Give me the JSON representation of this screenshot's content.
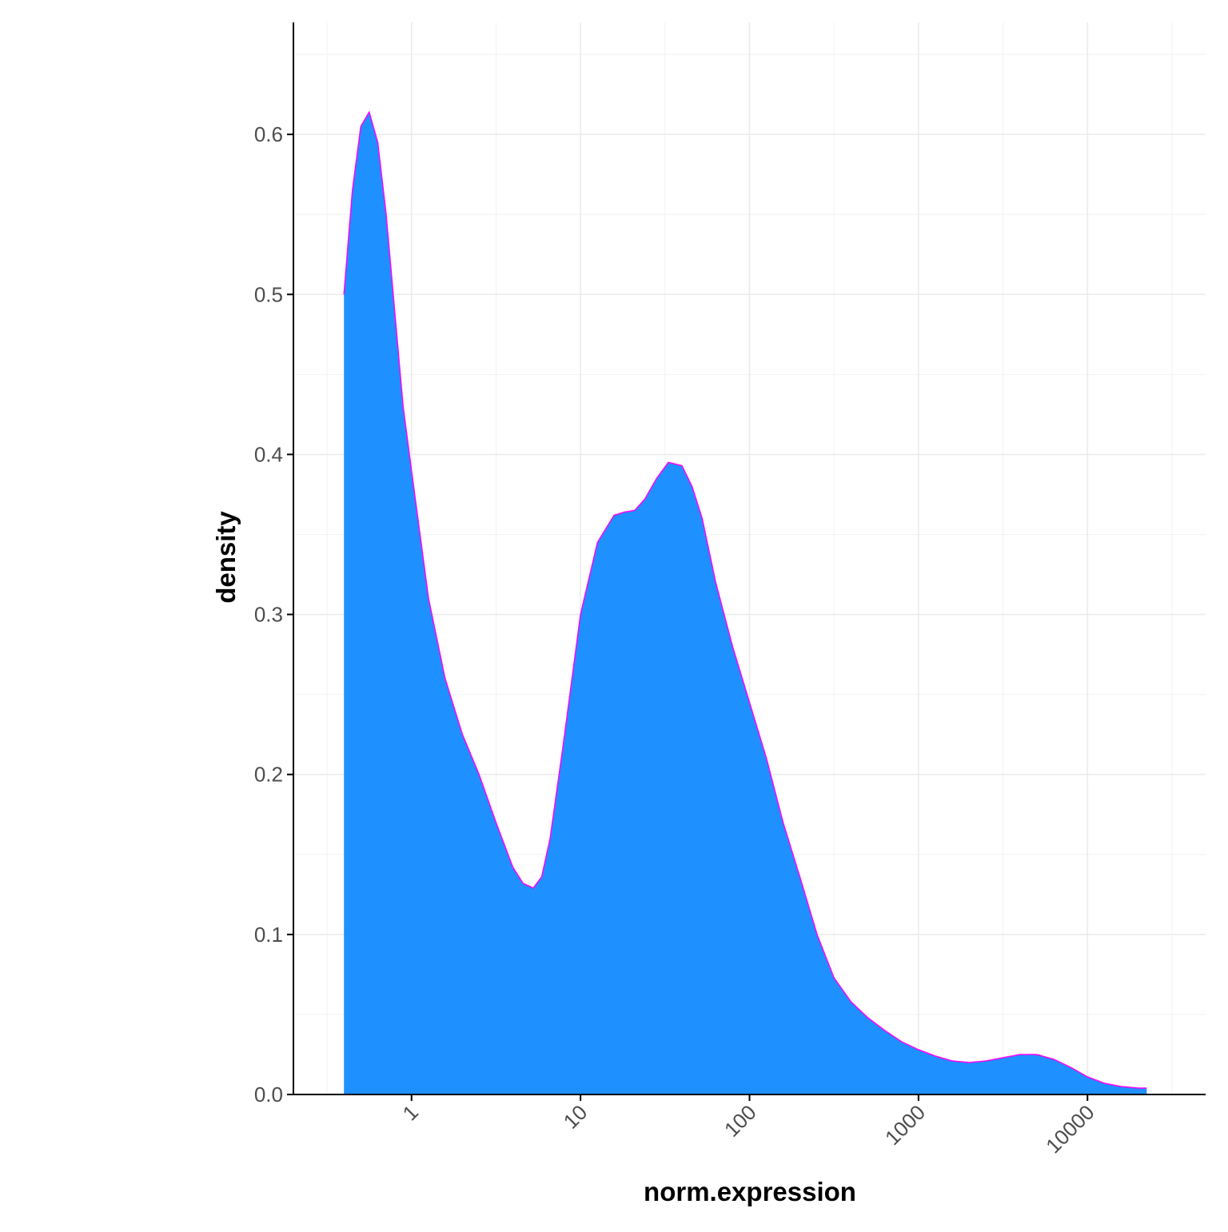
{
  "chart_data": {
    "type": "area",
    "title": "",
    "xlabel": "norm.expression",
    "ylabel": "density",
    "x_scale": "log10",
    "xlim": [
      0.2,
      50000
    ],
    "ylim": [
      0,
      0.67
    ],
    "x_ticks": [
      1,
      10,
      100,
      1000,
      10000
    ],
    "x_tick_labels": [
      "1",
      "10",
      "100",
      "1000",
      "10000"
    ],
    "y_ticks": [
      0.0,
      0.1,
      0.2,
      0.3,
      0.4,
      0.5,
      0.6
    ],
    "y_tick_labels": [
      "0.0",
      "0.1",
      "0.2",
      "0.3",
      "0.4",
      "0.5",
      "0.6"
    ],
    "grid": true,
    "colors": {
      "fill": "#1E90FF",
      "outline": "#FF00FF"
    },
    "series": [
      {
        "x": [
          0.398,
          0.447,
          0.501,
          0.562,
          0.631,
          0.708,
          0.794,
          0.891,
          1.0,
          1.26,
          1.58,
          2.0,
          2.51,
          3.16,
          3.98,
          4.57,
          5.25,
          5.89,
          6.61,
          7.94,
          10.0,
          12.6,
          15.8,
          18.2,
          20.9,
          24.0,
          28.2,
          33.1,
          39.8,
          45.7,
          52.5,
          63.1,
          79.4,
          100,
          126,
          158,
          200,
          251,
          316,
          398,
          501,
          631,
          794,
          1000,
          1260,
          1580,
          2000,
          2510,
          3160,
          3980,
          5010,
          6310,
          7940,
          10000,
          12600,
          15800,
          20000,
          22400
        ],
        "y": [
          0.5,
          0.565,
          0.605,
          0.614,
          0.595,
          0.55,
          0.49,
          0.43,
          0.39,
          0.31,
          0.26,
          0.225,
          0.2,
          0.17,
          0.142,
          0.132,
          0.129,
          0.136,
          0.16,
          0.22,
          0.3,
          0.345,
          0.362,
          0.364,
          0.365,
          0.372,
          0.385,
          0.395,
          0.393,
          0.38,
          0.36,
          0.32,
          0.28,
          0.245,
          0.21,
          0.17,
          0.135,
          0.1,
          0.073,
          0.058,
          0.048,
          0.04,
          0.033,
          0.028,
          0.024,
          0.021,
          0.02,
          0.021,
          0.023,
          0.025,
          0.025,
          0.022,
          0.017,
          0.011,
          0.007,
          0.005,
          0.004,
          0.004
        ]
      }
    ]
  }
}
